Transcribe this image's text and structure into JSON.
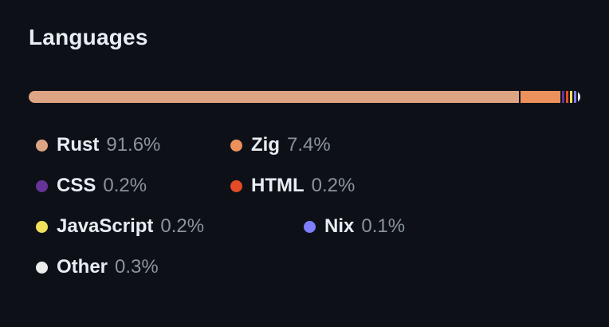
{
  "panel": {
    "title": "Languages"
  },
  "theme": {
    "background": "#0d1117",
    "title_color": "#e6edf3",
    "name_color": "#e6edf3",
    "percent_color": "#8b949e"
  },
  "chart_data": {
    "type": "bar",
    "variant": "stacked-percentage-bar",
    "title": "Languages",
    "unit": "%",
    "total": 100,
    "legend_position": "below",
    "segments": [
      {
        "label": "Rust",
        "value": 91.6,
        "percent_label": "91.6%",
        "color": "#dea584"
      },
      {
        "label": "Zig",
        "value": 7.4,
        "percent_label": "7.4%",
        "color": "#ec915c"
      },
      {
        "label": "CSS",
        "value": 0.2,
        "percent_label": "0.2%",
        "color": "#663399"
      },
      {
        "label": "HTML",
        "value": 0.2,
        "percent_label": "0.2%",
        "color": "#e34c26"
      },
      {
        "label": "JavaScript",
        "value": 0.2,
        "percent_label": "0.2%",
        "color": "#f1e05a"
      },
      {
        "label": "Nix",
        "value": 0.1,
        "percent_label": "0.1%",
        "color": "#7e7eff"
      },
      {
        "label": "Other",
        "value": 0.3,
        "percent_label": "0.3%",
        "color": "#ededed"
      }
    ]
  }
}
